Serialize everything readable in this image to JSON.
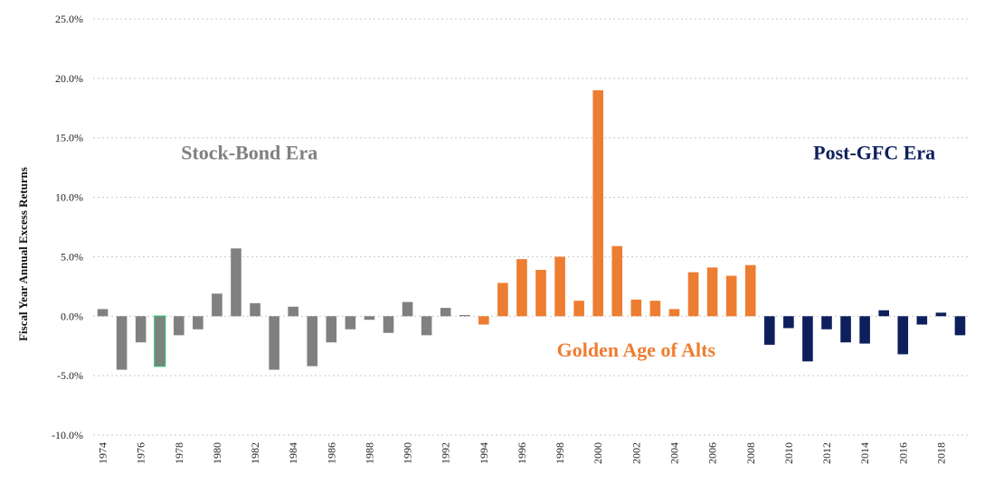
{
  "chart_data": {
    "type": "bar",
    "ylabel": "Fiscal Year Annual  Excess Returns",
    "ylim": [
      -10.0,
      25.0
    ],
    "y_ticks": [
      -10.0,
      -5.0,
      0.0,
      5.0,
      10.0,
      15.0,
      20.0,
      25.0
    ],
    "y_tick_labels": [
      "-10.0%",
      "-5.0%",
      "0.0%",
      "5.0%",
      "10.0%",
      "15.0%",
      "20.0%",
      "25.0%"
    ],
    "grid": "horizontal dotted",
    "categories": [
      1974,
      1975,
      1976,
      1977,
      1978,
      1979,
      1980,
      1981,
      1982,
      1983,
      1984,
      1985,
      1986,
      1987,
      1988,
      1989,
      1990,
      1991,
      1992,
      1993,
      1994,
      1995,
      1996,
      1997,
      1998,
      1999,
      2000,
      2001,
      2002,
      2003,
      2004,
      2005,
      2006,
      2007,
      2008,
      2009,
      2010,
      2011,
      2012,
      2013,
      2014,
      2015,
      2016,
      2017,
      2018,
      2019
    ],
    "x_tick_labels": [
      "1974",
      "1976",
      "1978",
      "1980",
      "1982",
      "1984",
      "1986",
      "1988",
      "1990",
      "1992",
      "1994",
      "1996",
      "1998",
      "2000",
      "2002",
      "2004",
      "2006",
      "2008",
      "2010",
      "2012",
      "2014",
      "2016",
      "2018"
    ],
    "values": [
      0.6,
      -4.5,
      -2.2,
      -4.2,
      -1.6,
      -1.1,
      1.9,
      5.7,
      1.1,
      -4.5,
      0.8,
      -4.2,
      -2.2,
      -1.1,
      -0.3,
      -1.4,
      1.2,
      -1.6,
      0.7,
      0.1,
      -0.7,
      2.8,
      4.8,
      3.9,
      5.0,
      1.3,
      19.0,
      5.9,
      1.4,
      1.3,
      0.6,
      3.7,
      4.1,
      3.4,
      4.3,
      -2.4,
      -1.0,
      -3.8,
      -1.1,
      -2.2,
      -2.3,
      0.5,
      -3.2,
      -0.7,
      0.3,
      -1.6
    ],
    "eras": [
      {
        "name": "Stock-Bond Era",
        "from": 1974,
        "to": 1993,
        "color": "#808080",
        "label_x": 1981.2,
        "label_y": 13.2
      },
      {
        "name": "Golden Age of Alts",
        "from": 1994,
        "to": 2008,
        "color": "#ED7D31",
        "label_x": 2001.5,
        "label_y": -3.4
      },
      {
        "name": "Post-GFC Era",
        "from": 2009,
        "to": 2019,
        "color": "#0D1F5C",
        "label_x": 2014.0,
        "label_y": 13.2
      }
    ],
    "highlight": {
      "year": 1977,
      "outline_color": "#3CB371"
    },
    "tick_color": "#222222"
  }
}
